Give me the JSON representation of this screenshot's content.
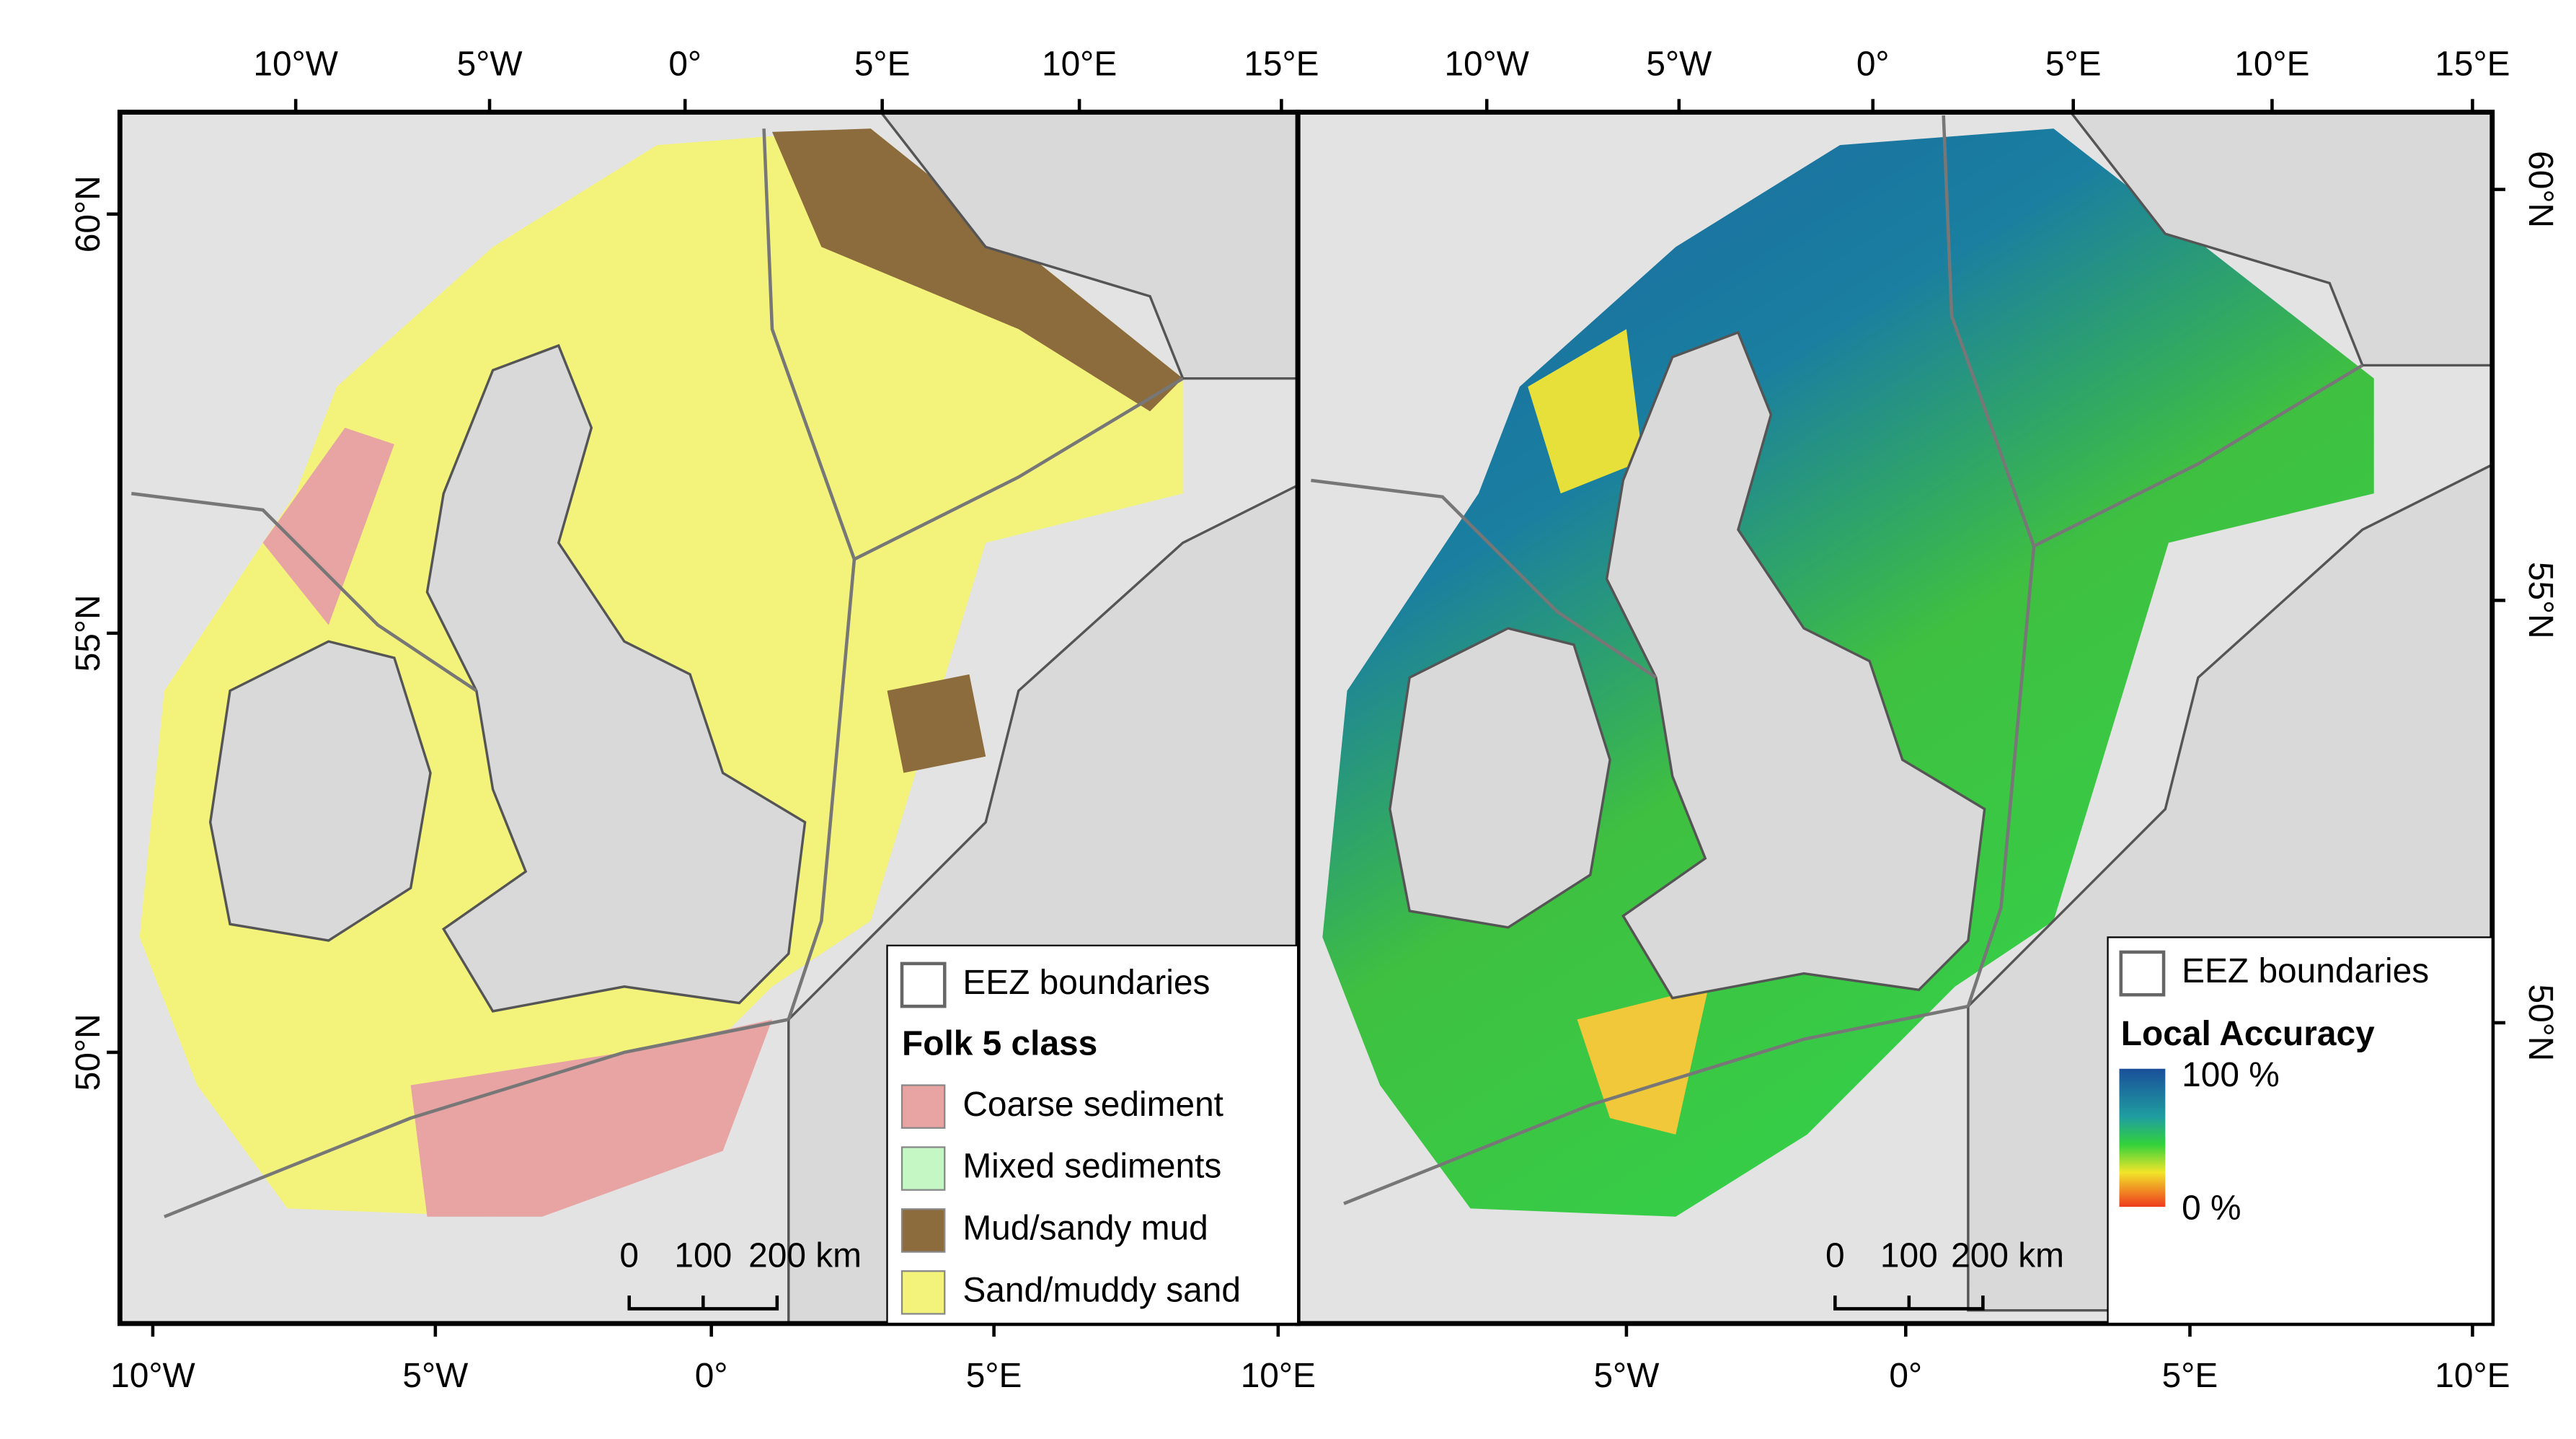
{
  "panels": [
    {
      "top_labels": [
        "10°W",
        "5°W",
        "0°",
        "5°E",
        "10°E",
        "15°E"
      ],
      "bottom_labels": [
        "10°W",
        "5°W",
        "0°",
        "5°E",
        "10°E"
      ],
      "side_labels": [
        "60°N",
        "55°N",
        "50°N"
      ],
      "legend": {
        "boundary": "EEZ boundaries",
        "title": "Folk 5 class",
        "classes": [
          {
            "label": "Coarse sediment",
            "color": "#e8a3a3"
          },
          {
            "label": "Mixed sediments",
            "color": "#c4f7c4"
          },
          {
            "label": "Mud/sandy mud",
            "color": "#8c6b3d"
          },
          {
            "label": "Sand/muddy sand",
            "color": "#f3f37c"
          }
        ]
      },
      "scale_bar": [
        "0",
        "100",
        "200 km"
      ]
    },
    {
      "top_labels": [
        "10°W",
        "5°W",
        "0°",
        "5°E",
        "10°E",
        "15°E"
      ],
      "bottom_labels": [
        "5°W",
        "0°",
        "5°E",
        "10°E"
      ],
      "side_labels": [
        "60°N",
        "55°N",
        "50°N"
      ],
      "legend": {
        "boundary": "EEZ boundaries",
        "title": "Local Accuracy",
        "max_label": "100 %",
        "min_label": "0 %"
      },
      "scale_bar": [
        "0",
        "100",
        "200 km"
      ]
    }
  ]
}
